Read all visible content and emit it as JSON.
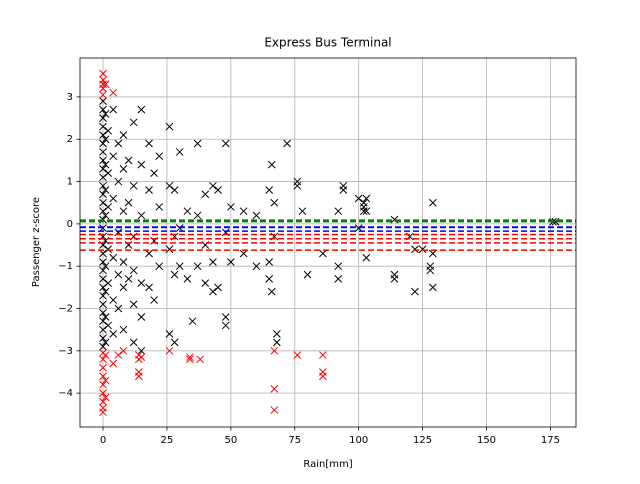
{
  "chart_data": {
    "type": "scatter",
    "title": "Express Bus Terminal",
    "xlabel": "Rain[mm]",
    "ylabel": "Passenger z-score",
    "grid": true,
    "marker": "x",
    "xlim": [
      -9,
      185
    ],
    "ylim": [
      -4.8,
      3.92
    ],
    "xticks": [
      0,
      25,
      50,
      75,
      100,
      125,
      150,
      175
    ],
    "yticks": [
      {
        "value": -4,
        "label": "−4"
      },
      {
        "value": -3,
        "label": "−3"
      },
      {
        "value": -2,
        "label": "−2"
      },
      {
        "value": -1,
        "label": "−1"
      },
      0,
      1,
      2,
      3
    ],
    "hlines": [
      {
        "y": 0.07,
        "color": "#008000",
        "width": 3
      },
      {
        "y": -0.08,
        "color": "#0000ff",
        "width": 2
      },
      {
        "y": -0.17,
        "color": "#0000ff",
        "width": 1.5
      },
      {
        "y": -0.25,
        "color": "#ff0000",
        "width": 1.5
      },
      {
        "y": -0.35,
        "color": "#ff0000",
        "width": 1.5
      },
      {
        "y": -0.45,
        "color": "#ff0000",
        "width": 1.5
      },
      {
        "y": -0.62,
        "color": "#ff0000",
        "width": 1.5
      }
    ],
    "series": [
      {
        "color": "#000000",
        "x": [
          0,
          0,
          0,
          0,
          0,
          0,
          0,
          0,
          0,
          0,
          0,
          0,
          0,
          0,
          0,
          0,
          0,
          0,
          0,
          0,
          0,
          0,
          0,
          0,
          0,
          0,
          0,
          0,
          0,
          0,
          1,
          1,
          1,
          1,
          1,
          1,
          1,
          1,
          1,
          1,
          2,
          2,
          2,
          2,
          2,
          2,
          4,
          4,
          4,
          4,
          4,
          4,
          6,
          6,
          6,
          6,
          6,
          8,
          8,
          8,
          8,
          8,
          8,
          10,
          10,
          10,
          10,
          12,
          12,
          12,
          12,
          12,
          12,
          15,
          15,
          15,
          15,
          15,
          15,
          18,
          18,
          18,
          18,
          20,
          20,
          20,
          22,
          22,
          22,
          26,
          26,
          26,
          26,
          28,
          28,
          28,
          28,
          30,
          30,
          30,
          33,
          33,
          35,
          37,
          37,
          37,
          40,
          40,
          40,
          43,
          43,
          43,
          45,
          45,
          48,
          48,
          48,
          48,
          50,
          50,
          55,
          55,
          60,
          60,
          65,
          65,
          65,
          66,
          66,
          67,
          67,
          68,
          68,
          72,
          76,
          76,
          78,
          80,
          86,
          92,
          92,
          92,
          94,
          94,
          100,
          100,
          102,
          102,
          102,
          103,
          103,
          103,
          114,
          114,
          114,
          120,
          122,
          122,
          125,
          128,
          128,
          129,
          129,
          129,
          176,
          177
        ],
        "y": [
          2.9,
          2.7,
          2.5,
          2.3,
          2.1,
          1.9,
          1.7,
          1.5,
          1.3,
          1.1,
          0.9,
          0.7,
          0.5,
          0.3,
          0.1,
          -0.1,
          -0.3,
          -0.5,
          -0.7,
          -0.9,
          -1.1,
          -1.3,
          -1.5,
          -1.7,
          -1.9,
          -2.1,
          -2.3,
          -2.5,
          -2.7,
          -2.9,
          2.6,
          2.0,
          1.4,
          0.8,
          0.2,
          -0.4,
          -1.0,
          -1.6,
          -2.2,
          -2.8,
          2.2,
          1.2,
          0.4,
          -0.6,
          -1.4,
          -2.4,
          2.7,
          1.6,
          0.6,
          -0.8,
          -1.8,
          -2.6,
          1.9,
          1.0,
          -0.2,
          -1.2,
          -2.0,
          2.1,
          1.3,
          0.3,
          -0.9,
          -1.5,
          -2.5,
          1.5,
          0.5,
          -0.5,
          -1.3,
          2.4,
          0.9,
          -0.3,
          -1.1,
          -1.9,
          -2.8,
          2.7,
          1.4,
          0.2,
          -1.4,
          -2.2,
          -3.0,
          1.9,
          0.8,
          -0.7,
          -1.5,
          1.2,
          -0.4,
          -1.8,
          1.6,
          0.4,
          -1.0,
          2.3,
          0.9,
          -0.6,
          -2.6,
          0.8,
          -0.3,
          -1.2,
          -2.8,
          1.7,
          -0.1,
          -1.0,
          0.3,
          -1.3,
          -2.3,
          1.9,
          0.2,
          -1.0,
          0.7,
          -0.5,
          -1.4,
          0.9,
          -0.9,
          -1.6,
          0.8,
          -1.5,
          1.9,
          -0.2,
          -2.2,
          -2.4,
          0.4,
          -0.9,
          0.3,
          -0.7,
          0.2,
          -1.0,
          0.8,
          -0.9,
          -1.3,
          1.4,
          -1.6,
          0.5,
          -0.3,
          -2.6,
          -2.8,
          1.9,
          1.0,
          0.9,
          0.3,
          -1.2,
          -0.7,
          0.3,
          -1.0,
          -1.3,
          0.9,
          0.8,
          0.6,
          -0.1,
          0.3,
          0.4,
          0.5,
          0.6,
          0.3,
          -0.8,
          0.1,
          -1.2,
          -1.3,
          -0.3,
          -0.6,
          -1.6,
          -0.6,
          -1.1,
          -1.0,
          0.5,
          -0.7,
          -1.5,
          0.05,
          0.05
        ]
      },
      {
        "color": "#ff0000",
        "x": [
          0,
          0,
          0,
          0,
          0,
          0,
          0,
          0,
          0,
          0,
          0,
          0,
          0,
          0,
          1,
          1,
          1,
          1,
          4,
          4,
          6,
          8,
          14,
          14,
          14,
          14,
          15,
          26,
          34,
          34,
          38,
          67,
          67,
          67,
          76,
          86,
          86,
          86
        ],
        "y": [
          3.55,
          3.4,
          3.3,
          3.2,
          3.05,
          -3.05,
          -3.2,
          -3.4,
          -3.6,
          -3.8,
          -4.0,
          -4.2,
          -4.35,
          -4.45,
          3.3,
          -3.1,
          -3.7,
          -4.1,
          3.1,
          -3.3,
          -3.1,
          -3.0,
          -3.5,
          -3.6,
          -3.1,
          -3.2,
          -3.15,
          -3.0,
          -3.2,
          -3.15,
          -3.2,
          -3.9,
          -4.4,
          -3.0,
          -3.1,
          -3.1,
          -3.5,
          -3.6
        ]
      }
    ]
  }
}
